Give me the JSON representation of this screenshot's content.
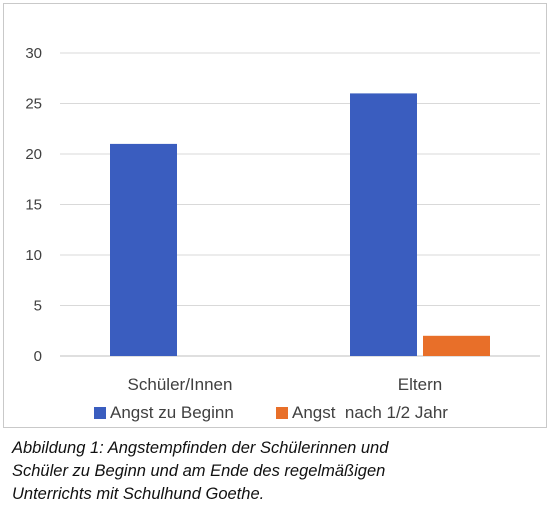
{
  "chart_data": {
    "type": "bar",
    "categories": [
      "Schüler/Innen",
      "Eltern"
    ],
    "series": [
      {
        "name": "Angst zu Beginn",
        "color": "#3a5dbf",
        "values": [
          21,
          26
        ]
      },
      {
        "name": "Angst  nach 1/2 Jahr",
        "color": "#e86f29",
        "values": [
          0,
          2
        ]
      }
    ],
    "ylim": [
      0,
      30
    ],
    "yticks": [
      0,
      5,
      10,
      15,
      20,
      25,
      30
    ],
    "grid": true,
    "legend_position": "bottom"
  },
  "caption": {
    "lines": [
      "Abbildung 1: Angstempfinden der Schülerinnen und",
      "Schüler zu Beginn und am Ende des regelmäßigen",
      "Unterrichts mit Schulhund Goethe."
    ]
  }
}
